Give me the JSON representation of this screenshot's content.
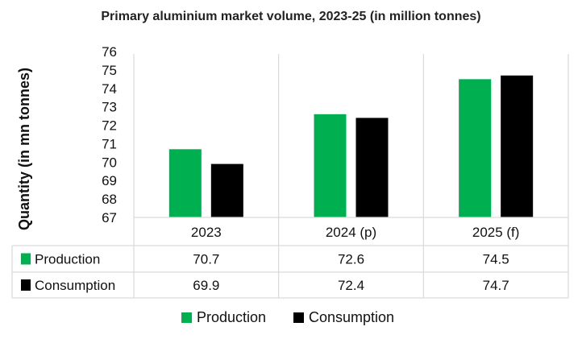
{
  "chart_data": {
    "type": "bar",
    "title": "Primary aluminium market volume, 2023-25 (in million tonnes)",
    "xlabel": "",
    "ylabel": "Quantity (in mn tonnes)",
    "ylim": [
      67,
      76
    ],
    "yticks": [
      67,
      68,
      69,
      70,
      71,
      72,
      73,
      74,
      75,
      76
    ],
    "categories": [
      "2023",
      "2024 (p)",
      "2025 (f)"
    ],
    "series": [
      {
        "name": "Production",
        "color": "#00b050",
        "values": [
          70.7,
          72.6,
          74.5
        ]
      },
      {
        "name": "Consumption",
        "color": "#000000",
        "values": [
          69.9,
          72.4,
          74.7
        ]
      }
    ],
    "data_table": {
      "rows": [
        {
          "label": "Production",
          "values": [
            "70.7",
            "72.6",
            "74.5"
          ]
        },
        {
          "label": "Consumption",
          "values": [
            "69.9",
            "72.4",
            "74.7"
          ]
        }
      ]
    },
    "legend": {
      "position": "bottom",
      "entries": [
        "Production",
        "Consumption"
      ]
    },
    "grid": "vertical category separators"
  }
}
